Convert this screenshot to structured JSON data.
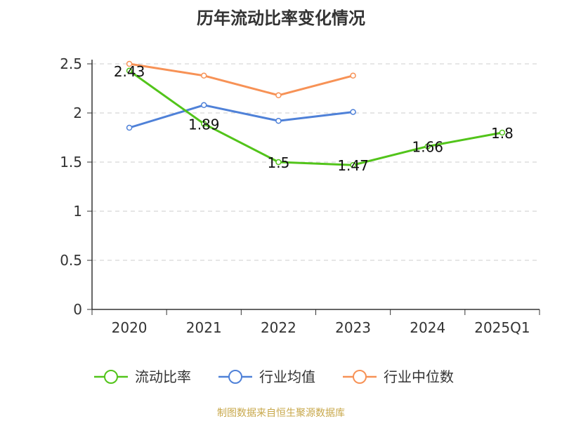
{
  "chart_data": {
    "type": "line",
    "title": "历年流动比率变化情况",
    "categories": [
      "2020",
      "2021",
      "2022",
      "2023",
      "2024",
      "2025Q1"
    ],
    "ylim": [
      0,
      2.5
    ],
    "yticks": [
      "0",
      "0.5",
      "1",
      "1.5",
      "2",
      "2.5"
    ],
    "grid": true,
    "legend_position": "bottom",
    "series": [
      {
        "name": "流动比率",
        "color": "#52c41a",
        "values": [
          2.43,
          1.89,
          1.5,
          1.47,
          1.66,
          1.8
        ],
        "labels": [
          "2.43",
          "1.89",
          "1.5",
          "1.47",
          "1.66",
          "1.8"
        ]
      },
      {
        "name": "行业均值",
        "color": "#4f81d8",
        "values": [
          1.85,
          2.08,
          1.92,
          2.01,
          null,
          null
        ]
      },
      {
        "name": "行业中位数",
        "color": "#f79256",
        "values": [
          2.5,
          2.38,
          2.18,
          2.38,
          null,
          null
        ]
      }
    ]
  },
  "source_text": "制图数据来自恒生聚源数据库",
  "source_color": "#c8a84b"
}
